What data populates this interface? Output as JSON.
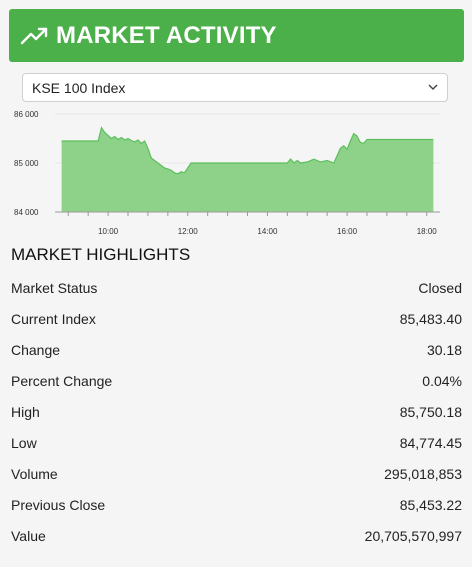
{
  "header": {
    "title": "MARKET ACTIVITY",
    "icon": "trending-up-icon",
    "bg_color": "#4cb04a"
  },
  "index_select": {
    "selected": "KSE 100 Index"
  },
  "chart_data": {
    "type": "area",
    "color": "#5cbf5c",
    "fill_color": "#8ed28a",
    "yticks": [
      "86 000",
      "85 000",
      "84 000"
    ],
    "xticks": [
      "10:00",
      "12:00",
      "14:00",
      "16:00",
      "18:00"
    ],
    "ylim": [
      84000,
      86000
    ],
    "xlim": [
      "08:40",
      "18:20"
    ],
    "points": [
      [
        "08:50",
        85450
      ],
      [
        "09:45",
        85450
      ],
      [
        "09:50",
        85720
      ],
      [
        "09:55",
        85620
      ],
      [
        "10:00",
        85560
      ],
      [
        "10:05",
        85500
      ],
      [
        "10:10",
        85540
      ],
      [
        "10:15",
        85480
      ],
      [
        "10:20",
        85520
      ],
      [
        "10:25",
        85470
      ],
      [
        "10:30",
        85500
      ],
      [
        "10:35",
        85460
      ],
      [
        "10:40",
        85430
      ],
      [
        "10:45",
        85470
      ],
      [
        "10:50",
        85400
      ],
      [
        "10:55",
        85450
      ],
      [
        "11:00",
        85300
      ],
      [
        "11:05",
        85100
      ],
      [
        "11:10",
        85050
      ],
      [
        "11:15",
        85000
      ],
      [
        "11:20",
        84950
      ],
      [
        "11:25",
        84900
      ],
      [
        "11:30",
        84880
      ],
      [
        "11:35",
        84850
      ],
      [
        "11:40",
        84800
      ],
      [
        "11:45",
        84780
      ],
      [
        "11:50",
        84820
      ],
      [
        "11:55",
        84800
      ],
      [
        "12:00",
        84900
      ],
      [
        "12:05",
        85000
      ],
      [
        "14:30",
        85000
      ],
      [
        "14:35",
        85080
      ],
      [
        "14:40",
        85000
      ],
      [
        "14:45",
        85050
      ],
      [
        "14:50",
        85000
      ],
      [
        "15:00",
        85020
      ],
      [
        "15:10",
        85080
      ],
      [
        "15:20",
        85020
      ],
      [
        "15:30",
        85050
      ],
      [
        "15:40",
        85000
      ],
      [
        "15:45",
        85150
      ],
      [
        "15:50",
        85300
      ],
      [
        "15:55",
        85350
      ],
      [
        "16:00",
        85280
      ],
      [
        "16:05",
        85450
      ],
      [
        "16:10",
        85600
      ],
      [
        "16:15",
        85550
      ],
      [
        "16:20",
        85420
      ],
      [
        "16:25",
        85400
      ],
      [
        "16:30",
        85480
      ],
      [
        "18:10",
        85480
      ]
    ]
  },
  "highlights": {
    "title": "MARKET HIGHLIGHTS",
    "rows": [
      {
        "label": "Market Status",
        "value": "Closed"
      },
      {
        "label": "Current Index",
        "value": "85,483.40"
      },
      {
        "label": "Change",
        "value": "30.18"
      },
      {
        "label": "Percent Change",
        "value": "0.04%"
      },
      {
        "label": "High",
        "value": "85,750.18"
      },
      {
        "label": "Low",
        "value": "84,774.45"
      },
      {
        "label": "Volume",
        "value": "295,018,853"
      },
      {
        "label": "Previous Close",
        "value": "85,453.22"
      },
      {
        "label": "Value",
        "value": "20,705,570,997"
      }
    ]
  }
}
